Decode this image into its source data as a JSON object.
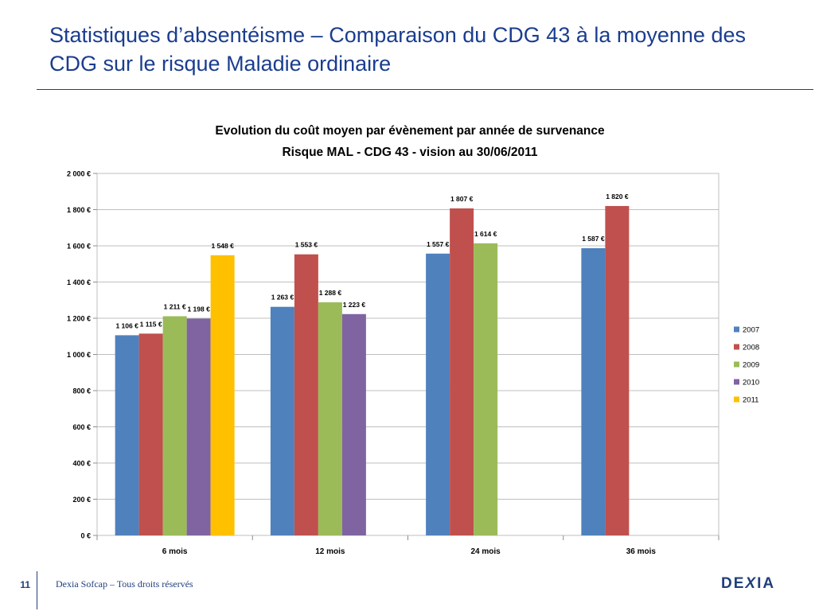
{
  "slide": {
    "title": "Statistiques d’absentéisme – Comparaison du CDG 43 à la moyenne des CDG sur le risque Maladie ordinaire",
    "page_number": "11",
    "footer": "Dexia Sofcap – Tous droits réservés",
    "logo": {
      "prefix": "DE",
      "x": "X",
      "suffix": "IA"
    }
  },
  "chart_data": {
    "type": "bar",
    "title_line1": "Evolution du coût moyen par évènement  par année de survenance",
    "title_line2": "Risque MAL - CDG 43 - vision au 30/06/2011",
    "categories": [
      "6 mois",
      "12 mois",
      "24 mois",
      "36 mois"
    ],
    "series": [
      {
        "name": "2007",
        "color": "#4f81bd",
        "values": [
          1106,
          1263,
          1557,
          1587
        ],
        "labels": [
          "1 106 €",
          "1 263 €",
          "1 557 €",
          "1 587 €"
        ]
      },
      {
        "name": "2008",
        "color": "#c0504d",
        "values": [
          1115,
          1553,
          1807,
          1820
        ],
        "labels": [
          "1 115 €",
          "1 553 €",
          "1 807 €",
          "1 820 €"
        ]
      },
      {
        "name": "2009",
        "color": "#9bbb59",
        "values": [
          1211,
          1288,
          1614,
          null
        ],
        "labels": [
          "1 211 €",
          "1 288 €",
          "1 614 €",
          null
        ]
      },
      {
        "name": "2010",
        "color": "#8064a2",
        "values": [
          1198,
          1223,
          null,
          null
        ],
        "labels": [
          "1 198 €",
          "1 223 €",
          null,
          null
        ]
      },
      {
        "name": "2011",
        "color": "#ffc000",
        "values": [
          1548,
          null,
          null,
          null
        ],
        "labels": [
          "1 548 €",
          null,
          null,
          null
        ]
      }
    ],
    "y_ticks": [
      "0 €",
      "200 €",
      "400 €",
      "600 €",
      "800 €",
      "1 000 €",
      "1 200 €",
      "1 400 €",
      "1 600 €",
      "1 800 €",
      "2 000 €"
    ],
    "ylim": [
      0,
      2000
    ],
    "y_step": 200,
    "grid": true,
    "legend_position": "right",
    "xlabel": "",
    "ylabel": ""
  }
}
